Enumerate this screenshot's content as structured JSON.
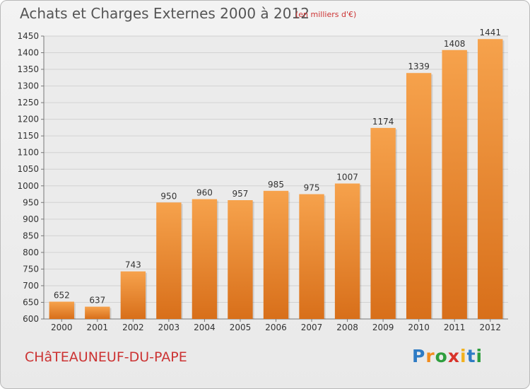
{
  "title": "Achats et Charges Externes 2000 à 2012",
  "subtitle": "(en milliers d'€)",
  "town": "CHâTEAUNEUF-DU-PAPE",
  "logo": {
    "letters": [
      "P",
      "r",
      "o",
      "x",
      "i",
      "t",
      "i"
    ],
    "colors": [
      "#2e7bc4",
      "#f28c1e",
      "#2e9e3e",
      "#d8332a",
      "#f2b21e",
      "#2e7bc4",
      "#2e9e3e"
    ]
  },
  "colors": {
    "bar_top": "#f6a24c",
    "bar_bottom": "#d86f1a",
    "accent_text": "#cc3333"
  },
  "chart_data": {
    "type": "bar",
    "categories": [
      "2000",
      "2001",
      "2002",
      "2003",
      "2004",
      "2005",
      "2006",
      "2007",
      "2008",
      "2009",
      "2010",
      "2011",
      "2012"
    ],
    "values": [
      652,
      637,
      743,
      950,
      960,
      957,
      985,
      975,
      1007,
      1174,
      1339,
      1408,
      1441
    ],
    "ylim": [
      600,
      1450
    ],
    "yticks": [
      600,
      650,
      700,
      750,
      800,
      850,
      900,
      950,
      1000,
      1050,
      1100,
      1150,
      1200,
      1250,
      1300,
      1350,
      1400,
      1450
    ],
    "grid": true
  }
}
